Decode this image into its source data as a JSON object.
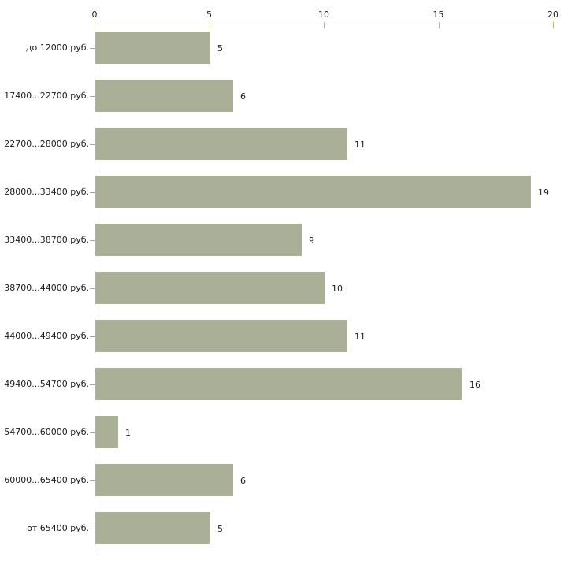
{
  "chart_data": {
    "type": "bar",
    "orientation": "horizontal",
    "title": "",
    "xlabel": "",
    "ylabel": "",
    "categories": [
      "до 12000 руб.",
      "17400...22700 руб.",
      "22700...28000 руб.",
      "28000...33400 руб.",
      "33400...38700 руб.",
      "38700...44000 руб.",
      "44000...49400 руб.",
      "49400...54700 руб.",
      "54700...60000 руб.",
      "60000...65400 руб.",
      "от 65400 руб."
    ],
    "values": [
      5,
      6,
      11,
      19,
      9,
      10,
      11,
      16,
      1,
      6,
      5
    ],
    "x_ticks": [
      0,
      5,
      10,
      15,
      20
    ],
    "xlim": [
      0,
      20
    ],
    "grid": false,
    "legend": false,
    "colors": {
      "bar": "#aab098",
      "axis_line": "#b9b9b9",
      "x_tick_mark": "#b3b786",
      "y_tick_mark": "#a6a69a",
      "text": "#1a1a1a"
    }
  }
}
